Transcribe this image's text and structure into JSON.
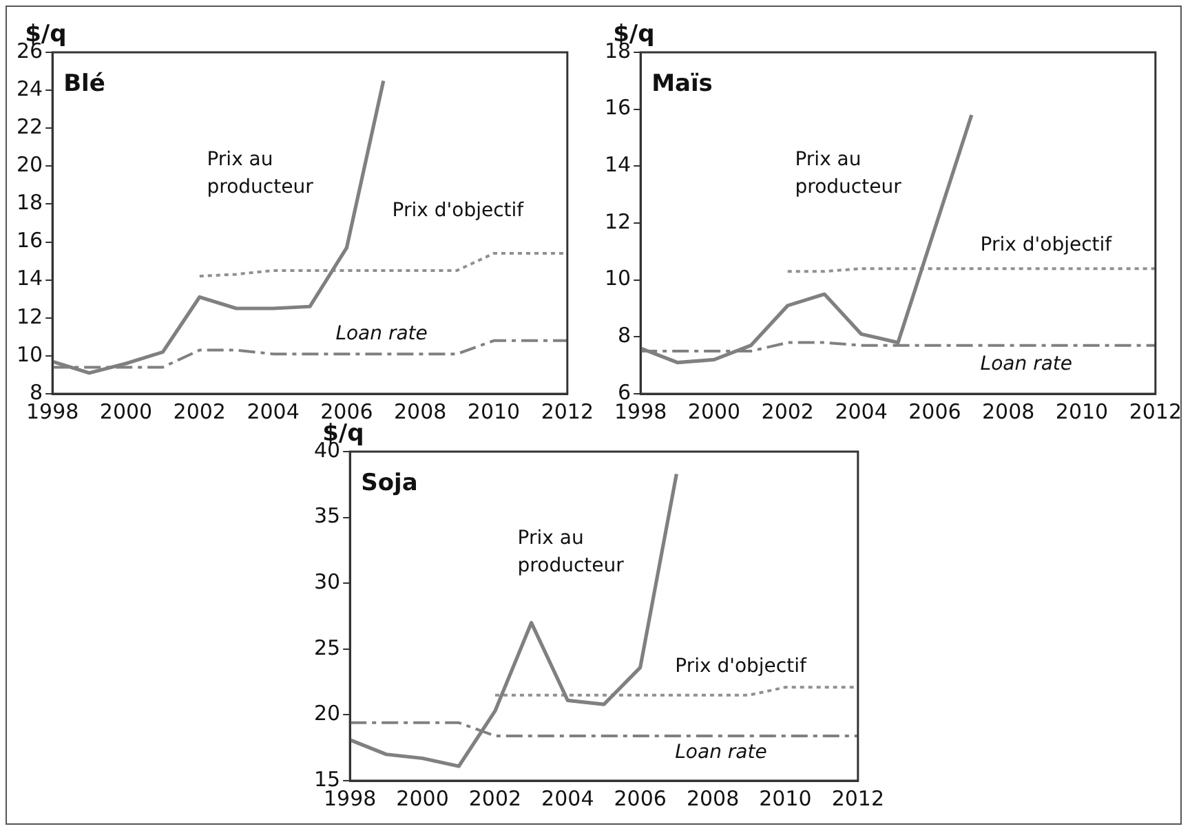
{
  "chart_data": [
    {
      "type": "line",
      "title": "Blé",
      "ylabel": "$/q",
      "xlim": [
        1998,
        2012
      ],
      "xticks": [
        1998,
        2000,
        2002,
        2004,
        2006,
        2008,
        2010,
        2012
      ],
      "ylim": [
        8,
        26
      ],
      "yticks": [
        8,
        10,
        12,
        14,
        16,
        18,
        20,
        22,
        24,
        26
      ],
      "grid": false,
      "legend": false,
      "marker": "none",
      "series": [
        {
          "name": "Prix au producteur",
          "color": "#808080",
          "line_style": "solid",
          "x": [
            1998,
            1999,
            2000,
            2001,
            2002,
            2003,
            2004,
            2005,
            2006,
            2007
          ],
          "values": [
            9.7,
            9.1,
            9.6,
            10.2,
            13.1,
            12.5,
            12.5,
            12.6,
            15.7,
            24.5
          ]
        },
        {
          "name": "Prix d'objectif",
          "color": "#909090",
          "line_style": "dotted",
          "x": [
            2002,
            2003,
            2004,
            2005,
            2006,
            2007,
            2008,
            2009,
            2010,
            2011,
            2012
          ],
          "values": [
            14.2,
            14.3,
            14.5,
            14.5,
            14.5,
            14.5,
            14.5,
            14.5,
            15.4,
            15.4,
            15.4
          ]
        },
        {
          "name": "Loan rate",
          "color": "#808080",
          "line_style": "dashdot",
          "x": [
            1998,
            1999,
            2000,
            2001,
            2002,
            2003,
            2004,
            2005,
            2006,
            2007,
            2008,
            2009,
            2010,
            2011,
            2012
          ],
          "values": [
            9.4,
            9.4,
            9.4,
            9.4,
            10.3,
            10.3,
            10.1,
            10.1,
            10.1,
            10.1,
            10.1,
            10.1,
            10.8,
            10.8,
            10.8
          ]
        }
      ]
    },
    {
      "type": "line",
      "title": "Maïs",
      "ylabel": "$/q",
      "xlim": [
        1998,
        2012
      ],
      "xticks": [
        1998,
        2000,
        2002,
        2004,
        2006,
        2008,
        2010,
        2012
      ],
      "ylim": [
        6,
        18
      ],
      "yticks": [
        6,
        8,
        10,
        12,
        14,
        16,
        18
      ],
      "grid": false,
      "legend": false,
      "marker": "none",
      "series": [
        {
          "name": "Prix au producteur",
          "color": "#808080",
          "line_style": "solid",
          "x": [
            1998,
            1999,
            2000,
            2001,
            2002,
            2003,
            2004,
            2005,
            2006,
            2007
          ],
          "values": [
            7.6,
            7.1,
            7.2,
            7.7,
            9.1,
            9.5,
            8.1,
            7.8,
            11.8,
            15.8
          ]
        },
        {
          "name": "Prix d'objectif",
          "color": "#909090",
          "line_style": "dotted",
          "x": [
            2002,
            2003,
            2004,
            2005,
            2006,
            2007,
            2008,
            2009,
            2010,
            2011,
            2012
          ],
          "values": [
            10.3,
            10.3,
            10.4,
            10.4,
            10.4,
            10.4,
            10.4,
            10.4,
            10.4,
            10.4,
            10.4
          ]
        },
        {
          "name": "Loan rate",
          "color": "#808080",
          "line_style": "dashdot",
          "x": [
            1998,
            1999,
            2000,
            2001,
            2002,
            2003,
            2004,
            2005,
            2006,
            2007,
            2008,
            2009,
            2010,
            2011,
            2012
          ],
          "values": [
            7.5,
            7.5,
            7.5,
            7.5,
            7.8,
            7.8,
            7.7,
            7.7,
            7.7,
            7.7,
            7.7,
            7.7,
            7.7,
            7.7,
            7.7
          ]
        }
      ]
    },
    {
      "type": "line",
      "title": "Soja",
      "ylabel": "$/q",
      "xlim": [
        1998,
        2012
      ],
      "xticks": [
        1998,
        2000,
        2002,
        2004,
        2006,
        2008,
        2010,
        2012
      ],
      "ylim": [
        15,
        40
      ],
      "yticks": [
        15,
        20,
        25,
        30,
        35,
        40
      ],
      "grid": false,
      "legend": false,
      "marker": "none",
      "series": [
        {
          "name": "Prix au producteur",
          "color": "#808080",
          "line_style": "solid",
          "x": [
            1998,
            1999,
            2000,
            2001,
            2002,
            2003,
            2004,
            2005,
            2006,
            2007
          ],
          "values": [
            18.1,
            17.0,
            16.7,
            16.1,
            20.3,
            27.0,
            21.1,
            20.8,
            23.6,
            38.3
          ]
        },
        {
          "name": "Prix d'objectif",
          "color": "#909090",
          "line_style": "dotted",
          "x": [
            2002,
            2003,
            2004,
            2005,
            2006,
            2007,
            2008,
            2009,
            2010,
            2011,
            2012
          ],
          "values": [
            21.5,
            21.5,
            21.5,
            21.5,
            21.5,
            21.5,
            21.5,
            21.5,
            22.1,
            22.1,
            22.1
          ]
        },
        {
          "name": "Loan rate",
          "color": "#808080",
          "line_style": "dashdot",
          "x": [
            1998,
            1999,
            2000,
            2001,
            2002,
            2003,
            2004,
            2005,
            2006,
            2007,
            2008,
            2009,
            2010,
            2011,
            2012
          ],
          "values": [
            19.4,
            19.4,
            19.4,
            19.4,
            18.4,
            18.4,
            18.4,
            18.4,
            18.4,
            18.4,
            18.4,
            18.4,
            18.4,
            18.4,
            18.4
          ]
        }
      ]
    }
  ]
}
